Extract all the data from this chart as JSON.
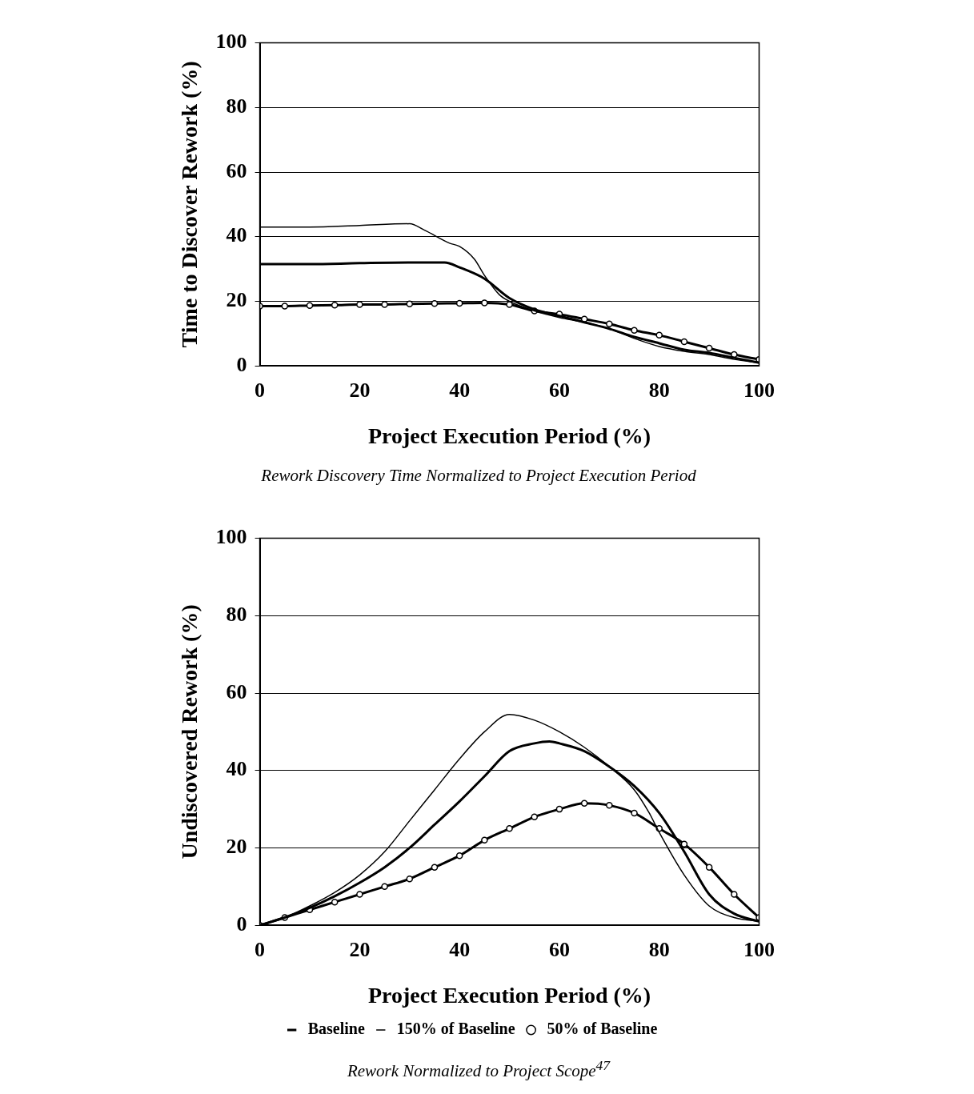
{
  "chart_data": [
    {
      "type": "line",
      "xlabel": "Project Execution Period (%)",
      "ylabel": "Time to Discover Rework (%)",
      "annotations": [
        "Rework Discovery Time Normalized to Project Execution Period"
      ],
      "xlim": [
        0,
        100
      ],
      "ylim": [
        0,
        100
      ],
      "xticks": [
        0,
        20,
        40,
        60,
        80,
        100
      ],
      "yticks": [
        0,
        20,
        40,
        60,
        80,
        100
      ],
      "grid": "y",
      "legend": false,
      "marker": "none",
      "series": [
        {
          "color": "#000000",
          "x": [
            0,
            10,
            20,
            30,
            37,
            40,
            45,
            50,
            55,
            60,
            65,
            70,
            75,
            80,
            85,
            90,
            95,
            100
          ],
          "values": [
            31.5,
            31.5,
            31.8,
            32,
            32,
            30.5,
            27,
            21,
            17.5,
            15.5,
            13.5,
            11.5,
            9,
            7,
            5,
            4,
            2.5,
            1
          ]
        },
        {
          "color": "#000000",
          "x": [
            0,
            10,
            20,
            30,
            33,
            38,
            40,
            43,
            45,
            48,
            50,
            55,
            60,
            65,
            70,
            75,
            80,
            85,
            90,
            95,
            100
          ],
          "values": [
            43,
            43,
            43.5,
            44,
            42,
            38,
            37,
            33,
            28,
            22,
            20,
            17,
            15,
            13.5,
            11.5,
            8.5,
            6,
            4.5,
            3.5,
            2,
            1
          ]
        },
        {
          "color": "#000000",
          "marker": "circle",
          "x": [
            0,
            5,
            10,
            15,
            20,
            25,
            30,
            35,
            40,
            45,
            50,
            55,
            60,
            65,
            70,
            75,
            80,
            85,
            90,
            95,
            100
          ],
          "values": [
            18.5,
            18.5,
            18.7,
            18.8,
            19,
            19,
            19.2,
            19.3,
            19.4,
            19.5,
            19,
            17,
            16,
            14.5,
            13,
            11,
            9.5,
            7.5,
            5.5,
            3.5,
            2
          ]
        }
      ]
    },
    {
      "type": "line",
      "xlabel": "Project Execution Period (%)",
      "ylabel": "Undiscovered Rework (%)",
      "annotations": [
        "Rework Normalized to Project Scope$^{47}$"
      ],
      "xlim": [
        0,
        100
      ],
      "ylim": [
        0,
        100
      ],
      "xticks": [
        0,
        20,
        40,
        60,
        80,
        100
      ],
      "yticks": [
        0,
        20,
        40,
        60,
        80,
        100
      ],
      "grid": "y",
      "legend": "bottom",
      "marker": "none",
      "series": [
        {
          "name": "Baseline",
          "color": "#000000",
          "x": [
            0,
            5,
            10,
            15,
            20,
            25,
            30,
            35,
            40,
            45,
            50,
            55,
            58,
            60,
            65,
            70,
            75,
            80,
            85,
            90,
            95,
            100
          ],
          "values": [
            0,
            2,
            4.5,
            7.5,
            11,
            15,
            20,
            26,
            32,
            38.5,
            45,
            47,
            47.5,
            47,
            45,
            41,
            36,
            29,
            19,
            8,
            3,
            1
          ]
        },
        {
          "name": "150% of Baseline",
          "color": "#000000",
          "x": [
            0,
            5,
            10,
            15,
            20,
            25,
            30,
            35,
            40,
            45,
            50,
            55,
            60,
            65,
            70,
            75,
            78,
            80,
            85,
            90,
            95,
            100
          ],
          "values": [
            0,
            2,
            5,
            8.5,
            13,
            19,
            27,
            35,
            43,
            50,
            54.5,
            53,
            50,
            46,
            41,
            35,
            29,
            24,
            13,
            5,
            2,
            1
          ]
        },
        {
          "name": "50% of Baseline",
          "color": "#000000",
          "marker": "circle",
          "x": [
            0,
            5,
            10,
            15,
            20,
            25,
            30,
            35,
            40,
            45,
            50,
            55,
            60,
            65,
            70,
            75,
            80,
            85,
            90,
            95,
            100
          ],
          "values": [
            0,
            2,
            4,
            6,
            8,
            10,
            12,
            15,
            18,
            22,
            25,
            28,
            30,
            31.5,
            31,
            29,
            25,
            21,
            15,
            8,
            2
          ]
        }
      ]
    }
  ]
}
